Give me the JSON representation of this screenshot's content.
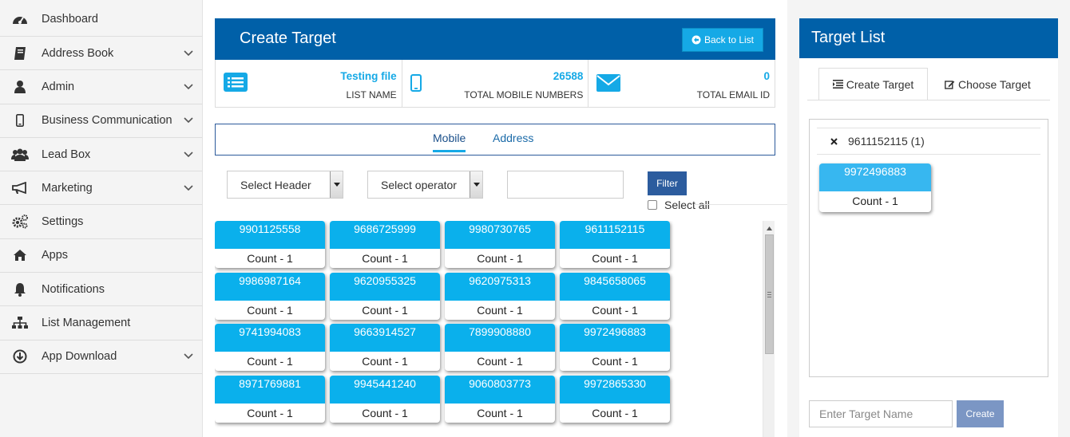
{
  "sidebar": {
    "items": [
      {
        "label": "Dashboard",
        "icon": "dashboard-icon",
        "chevron": false
      },
      {
        "label": "Address Book",
        "icon": "book-icon",
        "chevron": true
      },
      {
        "label": "Admin",
        "icon": "user-icon",
        "chevron": true
      },
      {
        "label": "Business Communication",
        "icon": "mobile-icon",
        "chevron": true
      },
      {
        "label": "Lead Box",
        "icon": "users-icon",
        "chevron": true
      },
      {
        "label": "Marketing",
        "icon": "megaphone-icon",
        "chevron": true
      },
      {
        "label": "Settings",
        "icon": "gears-icon",
        "chevron": false
      },
      {
        "label": "Apps",
        "icon": "home-icon",
        "chevron": false
      },
      {
        "label": "Notifications",
        "icon": "bell-icon",
        "chevron": false
      },
      {
        "label": "List Management",
        "icon": "sitemap-icon",
        "chevron": false
      },
      {
        "label": "App Download",
        "icon": "download-icon",
        "chevron": true
      }
    ]
  },
  "create": {
    "title": "Create Target",
    "back_label": "Back to List"
  },
  "stats": {
    "list_name_value": "Testing file",
    "list_name_label": "LIST NAME",
    "mobile_value": "26588",
    "mobile_label": "TOTAL MOBILE NUMBERS",
    "email_value": "0",
    "email_label": "TOTAL EMAIL ID"
  },
  "tabs": {
    "mobile": "Mobile",
    "address": "Address"
  },
  "filters": {
    "header_select": "Select Header",
    "operator_select": "Select operator",
    "filter_value": "",
    "filter_label": "Filter",
    "select_all": "Select all"
  },
  "cards": [
    {
      "number": "9901125558",
      "count": "Count - 1"
    },
    {
      "number": "9686725999",
      "count": "Count - 1"
    },
    {
      "number": "9980730765",
      "count": "Count - 1"
    },
    {
      "number": "9611152115",
      "count": "Count - 1"
    },
    {
      "number": "9986987164",
      "count": "Count - 1"
    },
    {
      "number": "9620955325",
      "count": "Count - 1"
    },
    {
      "number": "9620975313",
      "count": "Count - 1"
    },
    {
      "number": "9845658065",
      "count": "Count - 1"
    },
    {
      "number": "9741994083",
      "count": "Count - 1"
    },
    {
      "number": "9663914527",
      "count": "Count - 1"
    },
    {
      "number": "7899908880",
      "count": "Count - 1"
    },
    {
      "number": "9972496883",
      "count": "Count - 1"
    },
    {
      "number": "8971769881",
      "count": "Count - 1"
    },
    {
      "number": "9945441240",
      "count": "Count - 1"
    },
    {
      "number": "9060803773",
      "count": "Count - 1"
    },
    {
      "number": "9972865330",
      "count": "Count - 1"
    }
  ],
  "target_list": {
    "title": "Target List",
    "tab_create": "Create Target",
    "tab_choose": "Choose Target",
    "selected_item": "9611152115 (1)",
    "card_number": "9972496883",
    "card_count": "Count - 1",
    "name_placeholder": "Enter Target Name",
    "create_label": "Create"
  },
  "colors": {
    "header_blue": "#0060a8",
    "card_blue": "#0ab0ec",
    "accent_cyan": "#15a9e6",
    "filter_btn": "#2c5c9e"
  }
}
